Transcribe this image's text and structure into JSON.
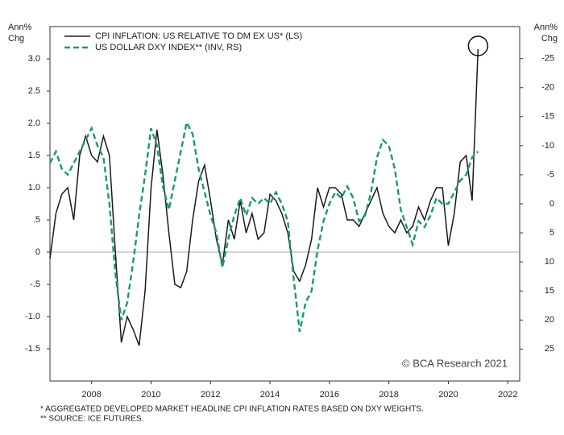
{
  "chart_data": {
    "type": "line",
    "left_axis_label": [
      "Ann%",
      "Chg"
    ],
    "right_axis_label": [
      "Ann%",
      "Chg"
    ],
    "x": [
      2006.6,
      2006.8,
      2007.0,
      2007.2,
      2007.4,
      2007.6,
      2007.8,
      2008.0,
      2008.2,
      2008.4,
      2008.6,
      2008.8,
      2009.0,
      2009.2,
      2009.4,
      2009.6,
      2009.8,
      2010.0,
      2010.2,
      2010.4,
      2010.6,
      2010.8,
      2011.0,
      2011.2,
      2011.4,
      2011.6,
      2011.8,
      2012.0,
      2012.2,
      2012.4,
      2012.6,
      2012.8,
      2013.0,
      2013.2,
      2013.4,
      2013.6,
      2013.8,
      2014.0,
      2014.2,
      2014.4,
      2014.6,
      2014.8,
      2015.0,
      2015.2,
      2015.4,
      2015.6,
      2015.8,
      2016.0,
      2016.2,
      2016.4,
      2016.6,
      2016.8,
      2017.0,
      2017.2,
      2017.4,
      2017.6,
      2017.8,
      2018.0,
      2018.2,
      2018.4,
      2018.6,
      2018.8,
      2019.0,
      2019.2,
      2019.4,
      2019.6,
      2019.8,
      2020.0,
      2020.2,
      2020.4,
      2020.6,
      2020.8,
      2021.0
    ],
    "series": [
      {
        "name": "CPI INFLATION: US RELATIVE TO DM EX US* (LS)",
        "color": "#1a1a1a",
        "dash": false,
        "axis": "y",
        "values": [
          -0.1,
          0.6,
          0.9,
          1.0,
          0.5,
          1.5,
          1.8,
          1.5,
          1.4,
          1.8,
          1.5,
          0.0,
          -1.4,
          -1.0,
          -1.2,
          -1.45,
          -0.6,
          1.0,
          1.9,
          1.2,
          0.3,
          -0.5,
          -0.55,
          -0.3,
          0.5,
          1.1,
          1.35,
          0.8,
          0.2,
          -0.2,
          0.5,
          0.2,
          0.8,
          0.3,
          0.6,
          0.2,
          0.3,
          0.9,
          0.8,
          0.6,
          0.3,
          -0.3,
          -0.45,
          -0.2,
          0.2,
          1.0,
          0.7,
          1.0,
          1.0,
          0.9,
          0.5,
          0.5,
          0.4,
          0.6,
          0.8,
          1.0,
          0.6,
          0.4,
          0.3,
          0.5,
          0.3,
          0.4,
          0.7,
          0.5,
          0.8,
          1.0,
          1.0,
          0.1,
          0.6,
          1.4,
          1.5,
          0.8,
          3.15
        ]
      },
      {
        "name": "US DOLLAR DXY INDEX** (INV, RS)",
        "color": "#1a9a6a",
        "dash": true,
        "axis": "y2",
        "values": [
          -7,
          -9,
          -6,
          -5,
          -7,
          -9,
          -11,
          -13,
          -10,
          -8,
          0,
          12,
          20,
          17,
          10,
          2,
          -5,
          -13,
          -10,
          -3,
          1,
          -4,
          -9,
          -14,
          -12,
          -6,
          -2,
          2,
          5,
          11,
          6,
          2,
          -1,
          2,
          -1,
          0,
          -1,
          0,
          -2,
          0,
          3,
          13,
          22,
          17,
          15,
          8,
          3,
          0,
          -2,
          -1,
          -3,
          -1,
          3,
          2,
          -2,
          -8,
          -11,
          -10,
          -6,
          1,
          4,
          7,
          3,
          4,
          2,
          -1,
          0,
          0,
          -2,
          -4,
          -5,
          -8,
          -9
        ]
      }
    ],
    "xlim": [
      2006.6,
      2022.4
    ],
    "xticks": [
      2008,
      2010,
      2012,
      2014,
      2016,
      2018,
      2020,
      2022
    ],
    "ylim": [
      -2.0,
      3.5
    ],
    "yticks": [
      {
        "value": 3.0,
        "label": "3.0"
      },
      {
        "value": 2.5,
        "label": "2.5"
      },
      {
        "value": 2.0,
        "label": "2.0"
      },
      {
        "value": 1.5,
        "label": "1.5"
      },
      {
        "value": 1.0,
        "label": "1.0"
      },
      {
        "value": 0.5,
        "label": ".5"
      },
      0,
      {
        "value": -0.5,
        "label": "-.5"
      },
      {
        "value": -1.0,
        "label": "-1.0"
      },
      {
        "value": -1.5,
        "label": "-1.5"
      }
    ],
    "y2lim": [
      -30.5,
      30.5
    ],
    "y2_inverted": true,
    "y2ticks": [
      -25,
      -20,
      -15,
      -10,
      -5,
      0,
      5,
      10,
      15,
      20,
      25
    ],
    "zero_line": true,
    "source_mark": "© BCA Research 2021",
    "footnotes": [
      "* AGGREGATED DEVELOPED MARKET HEADLINE CPI INFLATION RATES BASED ON DXY WEIGHTS.",
      "** SOURCE: ICE FUTURES."
    ]
  }
}
